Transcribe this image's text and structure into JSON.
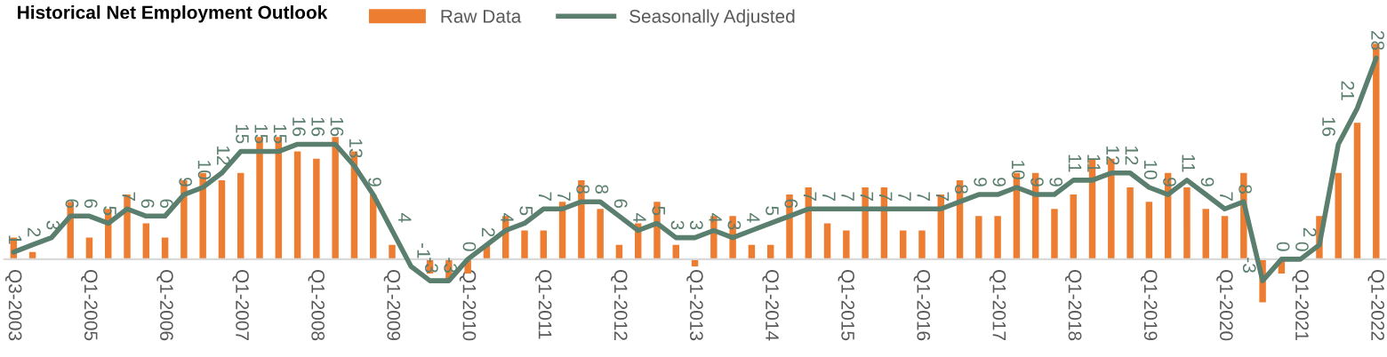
{
  "chart_data": {
    "type": "bar",
    "title": "Historical Net Employment Outlook",
    "categories": [
      "Q3-2003",
      null,
      null,
      null,
      "Q1-2005",
      null,
      null,
      null,
      "Q1-2006",
      null,
      null,
      null,
      "Q1-2007",
      null,
      null,
      null,
      "Q1-2008",
      null,
      null,
      null,
      "Q1-2009",
      null,
      null,
      null,
      "Q1-2010",
      null,
      null,
      null,
      "Q1-2011",
      null,
      null,
      null,
      "Q1-2012",
      null,
      null,
      null,
      "Q1-2013",
      null,
      null,
      null,
      "Q1-2014",
      null,
      null,
      null,
      "Q1-2015",
      null,
      null,
      null,
      "Q1-2016",
      null,
      null,
      null,
      "Q1-2017",
      null,
      null,
      null,
      "Q1-2018",
      null,
      null,
      null,
      "Q1-2019",
      null,
      null,
      null,
      "Q1-2020",
      null,
      null,
      null,
      "Q1-2021",
      null,
      null,
      null,
      "Q1-2022"
    ],
    "series": [
      {
        "name": "Raw Data",
        "color": "#ed7d31",
        "values": [
          3,
          1,
          0,
          8,
          3,
          7,
          9,
          5,
          3,
          11,
          12,
          11,
          12,
          17,
          17,
          15,
          14,
          17,
          15,
          9,
          2,
          null,
          -2,
          -3,
          -2,
          2,
          6,
          4,
          4,
          8,
          11,
          7,
          2,
          5,
          8,
          2,
          -1,
          6,
          6,
          2,
          2,
          9,
          10,
          5,
          4,
          10,
          10,
          4,
          4,
          9,
          11,
          6,
          6,
          12,
          12,
          7,
          9,
          14,
          14,
          10,
          8,
          12,
          10,
          7,
          6,
          12,
          -6,
          -2,
          0,
          6,
          12,
          19,
          30
        ]
      },
      {
        "name": "Seasonally Adjusted",
        "type": "line",
        "color": "#5b7f6e",
        "values": [
          1,
          2,
          3,
          6,
          6,
          5,
          7,
          6,
          6,
          9,
          10,
          12,
          15,
          15,
          15,
          16,
          16,
          16,
          13,
          9,
          4,
          -1,
          -3,
          -3,
          0,
          2,
          4,
          5,
          7,
          7,
          8,
          8,
          6,
          4,
          5,
          3,
          3,
          4,
          3,
          4,
          5,
          6,
          7,
          7,
          7,
          7,
          7,
          7,
          7,
          7,
          8,
          9,
          9,
          10,
          9,
          9,
          11,
          11,
          12,
          12,
          10,
          9,
          11,
          9,
          7,
          8,
          -3,
          0,
          0,
          2,
          16,
          21,
          28
        ],
        "value_labels": [
          "1",
          "2",
          "3",
          "6",
          "6",
          "5",
          "7",
          "6",
          "6",
          "9",
          "10",
          "12",
          "15",
          "15",
          "15",
          "16",
          "16",
          "16",
          "13",
          "9",
          "4",
          "-1",
          "-3",
          "-3",
          "0",
          "2",
          "4",
          "5",
          "7",
          "7",
          "8",
          "8",
          "6",
          "4",
          "5",
          "3",
          "3",
          "4",
          "3",
          "4",
          "5",
          "6",
          "7",
          "7",
          "7",
          "7",
          "7",
          "7",
          "7",
          "7",
          "8",
          "9",
          "9",
          "10",
          "9",
          "9",
          "11",
          "11",
          "12",
          "12",
          "10",
          "9",
          "11",
          "9",
          "7",
          "8",
          "-3",
          "0",
          "0",
          "2",
          "16",
          "21",
          "28"
        ]
      }
    ],
    "legend": "top",
    "grid": false,
    "tick_labels": "x"
  }
}
